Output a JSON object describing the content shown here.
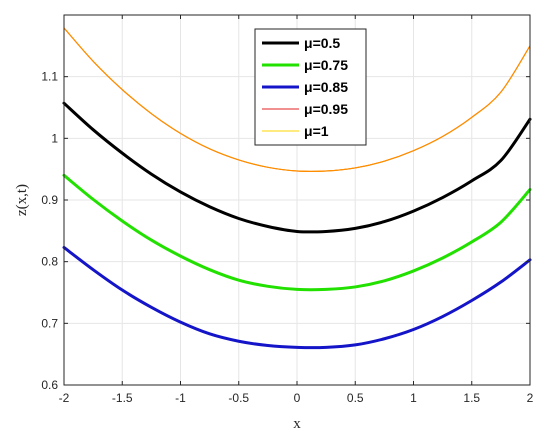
{
  "chart_data": {
    "type": "line",
    "title": "",
    "xlabel": "x",
    "ylabel": "z(x,t)",
    "xlim": [
      -2,
      2
    ],
    "ylim": [
      0.6,
      1.2
    ],
    "xticks": [
      -2,
      -1.5,
      -1,
      -0.5,
      0,
      0.5,
      1,
      1.5,
      2
    ],
    "xtick_labels": [
      "-2",
      "-1.5",
      "-1",
      "-0.5",
      "0",
      "0.5",
      "1",
      "1.5",
      "2"
    ],
    "yticks": [
      0.6,
      0.7,
      0.8,
      0.9,
      1.0,
      1.1
    ],
    "ytick_labels": [
      "0.6",
      "0.7",
      "0.8",
      "0.9",
      "1",
      "1.1"
    ],
    "grid": true,
    "legend_position": "top-center",
    "x": [
      -2,
      -1.75,
      -1.5,
      -1.25,
      -1,
      -0.75,
      -0.5,
      -0.25,
      0,
      0.25,
      0.5,
      0.75,
      1,
      1.25,
      1.5,
      1.75,
      2
    ],
    "series": [
      {
        "name": "μ=0.5",
        "color": "#000000",
        "width": 3,
        "values": [
          1.057,
          1.014,
          0.976,
          0.942,
          0.913,
          0.889,
          0.87,
          0.857,
          0.849,
          0.849,
          0.854,
          0.865,
          0.882,
          0.904,
          0.931,
          0.964,
          1.031
        ]
      },
      {
        "name": "μ=0.75",
        "color": "#22e000",
        "width": 3,
        "values": [
          0.94,
          0.901,
          0.866,
          0.835,
          0.809,
          0.787,
          0.77,
          0.76,
          0.755,
          0.755,
          0.759,
          0.769,
          0.785,
          0.806,
          0.832,
          0.864,
          0.917
        ]
      },
      {
        "name": "μ=0.85",
        "color": "#1414c8",
        "width": 3,
        "values": [
          0.823,
          0.787,
          0.754,
          0.726,
          0.702,
          0.683,
          0.671,
          0.664,
          0.661,
          0.661,
          0.665,
          0.675,
          0.69,
          0.711,
          0.737,
          0.767,
          0.803
        ]
      },
      {
        "name": "μ=0.95",
        "color": "#e02020",
        "width": 1,
        "values": [
          1.179,
          1.125,
          1.079,
          1.04,
          1.008,
          0.983,
          0.965,
          0.953,
          0.947,
          0.947,
          0.952,
          0.963,
          0.98,
          1.003,
          1.034,
          1.075,
          1.15
        ]
      },
      {
        "name": "μ=1",
        "color": "#ffd700",
        "width": 1,
        "values": [
          1.179,
          1.125,
          1.079,
          1.04,
          1.008,
          0.983,
          0.965,
          0.953,
          0.947,
          0.947,
          0.952,
          0.963,
          0.98,
          1.003,
          1.034,
          1.075,
          1.15
        ]
      }
    ],
    "overlap_color": "#ff8c00"
  }
}
